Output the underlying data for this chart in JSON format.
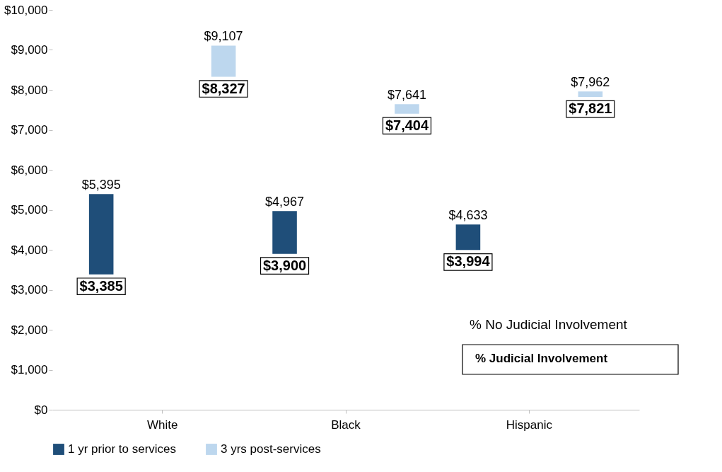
{
  "chart_data": {
    "type": "bar",
    "categories": [
      "White",
      "Black",
      "Hispanic"
    ],
    "series": [
      {
        "name": "1 yr prior to services",
        "color": "#1f4e79",
        "base": [
          3385,
          3900,
          3994
        ],
        "values": [
          2010,
          1067,
          639
        ],
        "value_labels": [
          "$5,395",
          "$4,967",
          "$4,633"
        ]
      },
      {
        "name": "3 yrs post-services",
        "color": "#bdd7ee",
        "base": [
          8327,
          7404,
          7821
        ],
        "values": [
          780,
          237,
          141
        ],
        "value_labels": [
          "$9,107",
          "$7,641",
          "$7,962"
        ]
      }
    ],
    "ylim": [
      0,
      10000
    ],
    "yticks": [
      {
        "value": 0,
        "label": "$0"
      },
      {
        "value": 1000,
        "label": "$1,000"
      },
      {
        "value": 2000,
        "label": "$2,000"
      },
      {
        "value": 3000,
        "label": "$3,000"
      },
      {
        "value": 4000,
        "label": "$4,000"
      },
      {
        "value": 5000,
        "label": "$5,000"
      },
      {
        "value": 6000,
        "label": "$6,000"
      },
      {
        "value": 7000,
        "label": "$7,000"
      },
      {
        "value": 8000,
        "label": "$8,000"
      },
      {
        "value": 9000,
        "label": "$9,000"
      },
      {
        "value": 10000,
        "label": "$10,000"
      }
    ],
    "annotations": [
      "$3,385",
      "$3,900",
      "$3,994",
      "$8,327",
      "$7,404",
      "$7,821",
      "% No Judicial Involvement",
      "% Judicial Involvement"
    ],
    "grid": false,
    "legend": "bottom"
  }
}
